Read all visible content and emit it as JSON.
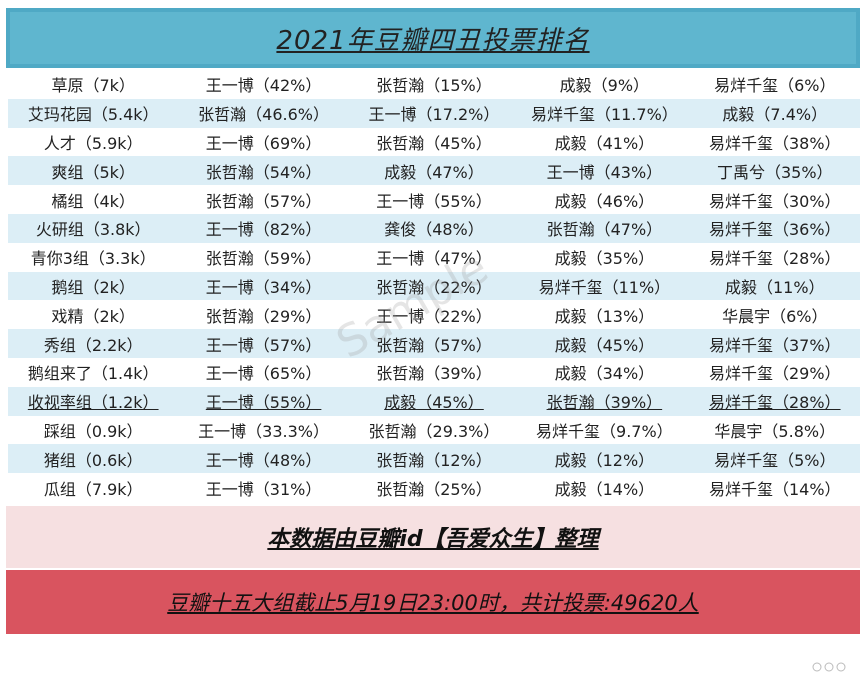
{
  "header": {
    "title": "2021年豆瓣四丑投票排名"
  },
  "table": {
    "rows": [
      [
        "草原（7k）",
        "王一博（42%）",
        "张哲瀚（15%）",
        "成毅（9%）",
        "易烊千玺（6%）"
      ],
      [
        "艾玛花园（5.4k）",
        "张哲瀚（46.6%）",
        "王一博（17.2%）",
        "易烊千玺（11.7%）",
        "成毅（7.4%）"
      ],
      [
        "人才（5.9k）",
        "王一博（69%）",
        "张哲瀚（45%）",
        "成毅（41%）",
        "易烊千玺（38%）"
      ],
      [
        "爽组（5k）",
        "张哲瀚（54%）",
        "成毅（47%）",
        "王一博（43%）",
        "丁禹兮（35%）"
      ],
      [
        "橘组（4k）",
        "张哲瀚（57%）",
        "王一博（55%）",
        "成毅（46%）",
        "易烊千玺（30%）"
      ],
      [
        "火研组（3.8k）",
        "王一博（82%）",
        "龚俊（48%）",
        "张哲瀚（47%）",
        "易烊千玺（36%）"
      ],
      [
        "青你3组（3.3k）",
        "张哲瀚（59%）",
        "王一博（47%）",
        "成毅（35%）",
        "易烊千玺（28%）"
      ],
      [
        "鹅组（2k）",
        "王一博（34%）",
        "张哲瀚（22%）",
        "易烊千玺（11%）",
        "成毅（11%）"
      ],
      [
        "戏精（2k）",
        "张哲瀚（29%）",
        "王一博（22%）",
        "成毅（13%）",
        "华晨宇（6%）"
      ],
      [
        "秀组（2.2k）",
        "王一博（57%）",
        "张哲瀚（57%）",
        "成毅（45%）",
        "易烊千玺（37%）"
      ],
      [
        "鹅组来了（1.4k）",
        "王一博（65%）",
        "张哲瀚（39%）",
        "成毅（34%）",
        "易烊千玺（29%）"
      ],
      [
        "收视率组（1.2k）",
        "王一博（55%）",
        "成毅（45%）",
        "张哲瀚（39%）",
        "易烊千玺（28%）"
      ],
      [
        "踩组（0.9k）",
        "王一博（33.3%）",
        "张哲瀚（29.3%）",
        "易烊千玺（9.7%）",
        "华晨宇（5.8%）"
      ],
      [
        "猪组（0.6k）",
        "王一博（48%）",
        "张哲瀚（12%）",
        "成毅（12%）",
        "易烊千玺（5%）"
      ],
      [
        "瓜组（7.9k）",
        "王一博（31%）",
        "张哲瀚（25%）",
        "成毅（14%）",
        "易烊千玺（14%）"
      ]
    ]
  },
  "watermark": "Sample",
  "footer": {
    "credit": "本数据由豆瓣id【吾爱众生】整理",
    "summary": "豆瓣十五大组截止5月19日23:00时，共计投票:49620人"
  }
}
